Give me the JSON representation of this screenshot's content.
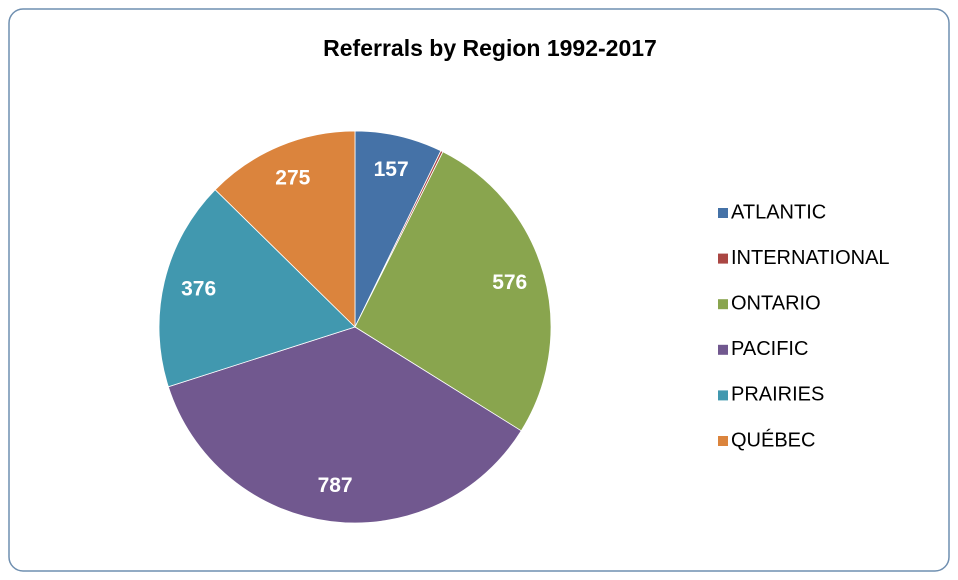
{
  "chart_data": {
    "type": "pie",
    "title": "Referrals by Region 1992-2017",
    "categories": [
      "ATLANTIC",
      "INTERNATIONAL",
      "ONTARIO",
      "PACIFIC",
      "PRAIRIES",
      "QUÉBEC"
    ],
    "values": [
      157,
      4,
      576,
      787,
      376,
      275
    ],
    "colors": [
      "#4572a7",
      "#aa4643",
      "#89a54e",
      "#71588f",
      "#4198af",
      "#db843d"
    ],
    "legend": "right"
  }
}
